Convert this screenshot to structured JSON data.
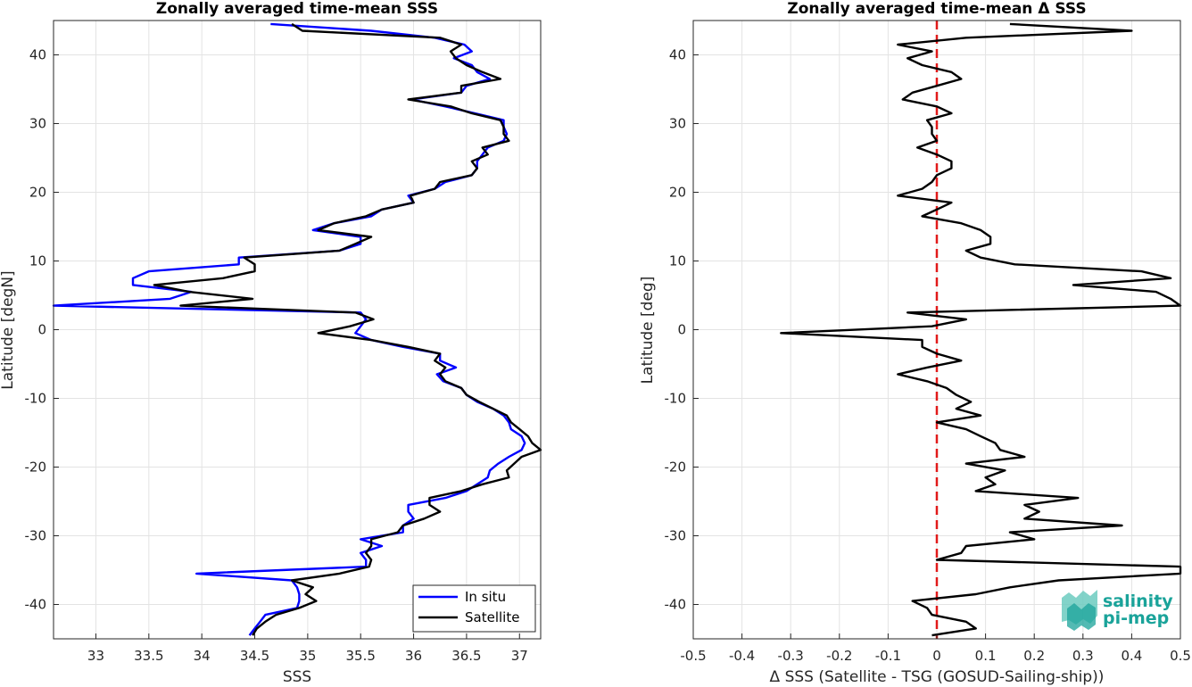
{
  "chart_data": [
    {
      "type": "line",
      "title": "Zonally averaged time-mean SSS",
      "xlabel": "SSS",
      "ylabel": "Latitude [degN]",
      "xlim": [
        32.6,
        37.2
      ],
      "ylim": [
        -45,
        45
      ],
      "xticks": [
        33,
        33.5,
        34,
        34.5,
        35,
        35.5,
        36,
        36.5,
        37
      ],
      "xtick_labels": [
        "33",
        "33.5",
        "34",
        "34.5",
        "35",
        "35.5",
        "36",
        "36.5",
        "37"
      ],
      "yticks": [
        -40,
        -30,
        -20,
        -10,
        0,
        10,
        20,
        30,
        40
      ],
      "ytick_labels": [
        "-40",
        "-30",
        "-20",
        "-10",
        "0",
        "10",
        "20",
        "30",
        "40"
      ],
      "grid": true,
      "legend_position": "bottom-right",
      "series": [
        {
          "name": "In situ",
          "color": "#0000ff",
          "lat": [
            44.5,
            43.5,
            42.5,
            41.5,
            40.5,
            39.5,
            38.5,
            37.5,
            36.5,
            35.5,
            34.5,
            33.5,
            32.5,
            31.5,
            30.5,
            29.5,
            28.5,
            27.5,
            26.5,
            25.5,
            24.5,
            23.5,
            22.5,
            21.5,
            20.5,
            19.5,
            18.5,
            17.5,
            16.5,
            15.5,
            14.5,
            13.5,
            12.5,
            11.5,
            10.5,
            9.5,
            8.5,
            7.5,
            6.5,
            5.5,
            4.5,
            3.5,
            2.5,
            1.5,
            0.5,
            -0.5,
            -1.5,
            -2.5,
            -3.5,
            -4.5,
            -5.5,
            -6.5,
            -7.5,
            -8.5,
            -9.5,
            -10.5,
            -11.5,
            -12.5,
            -13.5,
            -14.5,
            -15.5,
            -16.5,
            -17.5,
            -18.5,
            -19.5,
            -20.5,
            -21.5,
            -22.5,
            -23.5,
            -24.5,
            -25.5,
            -26.5,
            -27.5,
            -28.5,
            -29.5,
            -30.5,
            -31.5,
            -32.5,
            -33.5,
            -34.5,
            -35.5,
            -36.5,
            -37.5,
            -38.5,
            -39.5,
            -40.5,
            -41.5,
            -42.5,
            -43.5,
            -44.5
          ],
          "values": [
            34.65,
            35.6,
            36.2,
            36.48,
            36.55,
            36.38,
            36.55,
            36.6,
            36.72,
            36.5,
            36.45,
            35.98,
            36.3,
            36.58,
            36.85,
            36.85,
            36.88,
            36.85,
            36.7,
            36.65,
            36.6,
            36.6,
            36.55,
            36.3,
            36.2,
            35.95,
            36.0,
            35.7,
            35.6,
            35.25,
            35.05,
            35.5,
            35.5,
            35.3,
            34.35,
            34.35,
            33.5,
            33.35,
            33.35,
            33.9,
            33.7,
            32.6,
            35.5,
            35.55,
            35.5,
            35.45,
            35.6,
            35.9,
            36.25,
            36.25,
            36.4,
            36.22,
            36.28,
            36.45,
            36.5,
            36.6,
            36.75,
            36.85,
            36.9,
            36.92,
            37.02,
            37.05,
            37.02,
            36.9,
            36.8,
            36.72,
            36.7,
            36.6,
            36.5,
            36.3,
            35.95,
            35.95,
            36.0,
            35.9,
            35.9,
            35.5,
            35.7,
            35.5,
            35.55,
            35.55,
            33.95,
            34.85,
            34.9,
            34.92,
            34.92,
            34.9,
            34.6,
            34.55,
            34.5,
            34.45
          ]
        },
        {
          "name": "Satellite",
          "color": "#000000",
          "lat": [
            44.5,
            43.5,
            42.5,
            41.5,
            40.5,
            39.5,
            38.5,
            37.5,
            36.5,
            35.5,
            34.5,
            33.5,
            32.5,
            31.5,
            30.5,
            29.5,
            28.5,
            27.5,
            26.5,
            25.5,
            24.5,
            23.5,
            22.5,
            21.5,
            20.5,
            19.5,
            18.5,
            17.5,
            16.5,
            15.5,
            14.5,
            13.5,
            12.5,
            11.5,
            10.5,
            9.5,
            8.5,
            7.5,
            6.5,
            5.5,
            4.5,
            3.5,
            2.5,
            1.5,
            0.5,
            -0.5,
            -1.5,
            -2.5,
            -3.5,
            -4.5,
            -5.5,
            -6.5,
            -7.5,
            -8.5,
            -9.5,
            -10.5,
            -11.5,
            -12.5,
            -13.5,
            -14.5,
            -15.5,
            -16.5,
            -17.5,
            -18.5,
            -19.5,
            -20.5,
            -21.5,
            -22.5,
            -23.5,
            -24.5,
            -25.5,
            -26.5,
            -27.5,
            -28.5,
            -29.5,
            -30.5,
            -31.5,
            -32.5,
            -33.5,
            -34.5,
            -35.5,
            -36.5,
            -37.5,
            -38.5,
            -39.5,
            -40.5,
            -41.5,
            -42.5,
            -43.5,
            -44.5
          ],
          "values": [
            34.85,
            34.95,
            36.25,
            36.45,
            36.35,
            36.4,
            36.5,
            36.65,
            36.82,
            36.45,
            36.45,
            35.95,
            36.35,
            36.55,
            36.82,
            36.85,
            36.85,
            36.9,
            36.65,
            36.7,
            36.55,
            36.6,
            36.55,
            36.25,
            36.2,
            35.97,
            36.0,
            35.7,
            35.55,
            35.25,
            35.1,
            35.6,
            35.45,
            35.3,
            34.4,
            34.5,
            34.5,
            34.2,
            33.55,
            33.88,
            34.48,
            33.8,
            35.45,
            35.62,
            35.4,
            35.1,
            35.6,
            35.95,
            36.25,
            36.2,
            36.3,
            36.25,
            36.3,
            36.45,
            36.5,
            36.62,
            36.75,
            36.88,
            36.92,
            37.0,
            37.08,
            37.12,
            37.2,
            37.02,
            36.95,
            36.88,
            36.9,
            36.65,
            36.45,
            36.15,
            36.15,
            36.25,
            36.1,
            35.9,
            35.85,
            35.6,
            35.6,
            35.55,
            35.6,
            35.58,
            35.3,
            34.85,
            35.05,
            34.98,
            35.08,
            34.92,
            34.7,
            34.6,
            34.52,
            34.48
          ]
        }
      ]
    },
    {
      "type": "line",
      "title": "Zonally averaged time-mean Δ SSS",
      "xlabel": "Δ SSS (Satellite - TSG (GOSUD-Sailing-ship))",
      "ylabel": "Latitude [deg]",
      "xlim": [
        -0.5,
        0.5
      ],
      "ylim": [
        -45,
        45
      ],
      "xticks": [
        -0.5,
        -0.4,
        -0.3,
        -0.2,
        -0.1,
        0,
        0.1,
        0.2,
        0.3,
        0.4,
        0.5
      ],
      "xtick_labels": [
        "-0.5",
        "-0.4",
        "-0.3",
        "-0.2",
        "-0.1",
        "0",
        "0.1",
        "0.2",
        "0.3",
        "0.4",
        "0.5"
      ],
      "yticks": [
        -40,
        -30,
        -20,
        -10,
        0,
        10,
        20,
        30,
        40
      ],
      "ytick_labels": [
        "-40",
        "-30",
        "-20",
        "-10",
        "0",
        "10",
        "20",
        "30",
        "40"
      ],
      "grid": true,
      "reference_line": {
        "x": 0,
        "color": "#e11a1a",
        "style": "dashed"
      },
      "series": [
        {
          "name": "",
          "color": "#000000",
          "lat": [
            44.5,
            43.5,
            42.5,
            41.5,
            40.5,
            39.5,
            38.5,
            37.5,
            36.5,
            35.5,
            34.5,
            33.5,
            32.5,
            31.5,
            30.5,
            29.5,
            28.5,
            27.5,
            26.5,
            25.5,
            24.5,
            23.5,
            22.5,
            21.5,
            20.5,
            19.5,
            18.5,
            17.5,
            16.5,
            15.5,
            14.5,
            13.5,
            12.5,
            11.5,
            10.5,
            9.5,
            8.5,
            7.5,
            6.5,
            5.5,
            4.5,
            3.5,
            2.5,
            1.5,
            0.5,
            -0.5,
            -1.5,
            -2.5,
            -3.5,
            -4.5,
            -5.5,
            -6.5,
            -7.5,
            -8.5,
            -9.5,
            -10.5,
            -11.5,
            -12.5,
            -13.5,
            -14.5,
            -15.5,
            -16.5,
            -17.5,
            -18.5,
            -19.5,
            -20.5,
            -21.5,
            -22.5,
            -23.5,
            -24.5,
            -25.5,
            -26.5,
            -27.5,
            -28.5,
            -29.5,
            -30.5,
            -31.5,
            -32.5,
            -33.5,
            -34.5,
            -35.5,
            -36.5,
            -37.5,
            -38.5,
            -39.5,
            -40.5,
            -41.5,
            -42.5,
            -43.5,
            -44.5
          ],
          "values": [
            0.15,
            0.4,
            0.06,
            -0.08,
            -0.01,
            -0.06,
            -0.03,
            0.03,
            0.05,
            0.0,
            -0.05,
            -0.07,
            0.0,
            0.03,
            -0.02,
            -0.01,
            -0.01,
            0.0,
            -0.04,
            0.0,
            0.03,
            0.03,
            0.0,
            -0.01,
            -0.03,
            -0.08,
            0.03,
            0.0,
            -0.03,
            0.05,
            0.09,
            0.11,
            0.11,
            0.06,
            0.09,
            0.16,
            0.42,
            0.48,
            0.28,
            0.45,
            0.48,
            0.5,
            -0.06,
            0.06,
            -0.01,
            -0.32,
            -0.03,
            -0.03,
            0.0,
            0.05,
            -0.02,
            -0.08,
            -0.02,
            0.02,
            0.04,
            0.07,
            0.04,
            0.09,
            0.0,
            0.06,
            0.09,
            0.12,
            0.13,
            0.18,
            0.06,
            0.14,
            0.1,
            0.12,
            0.08,
            0.29,
            0.18,
            0.21,
            0.18,
            0.38,
            0.15,
            0.2,
            0.06,
            0.05,
            0.0,
            0.5,
            0.5,
            0.25,
            0.15,
            0.08,
            -0.05,
            -0.02,
            -0.01,
            0.06,
            0.08,
            -0.01
          ]
        }
      ]
    }
  ],
  "logo": {
    "line1": "salinity",
    "line2": "pi-mep",
    "color": "#1aa39a"
  }
}
